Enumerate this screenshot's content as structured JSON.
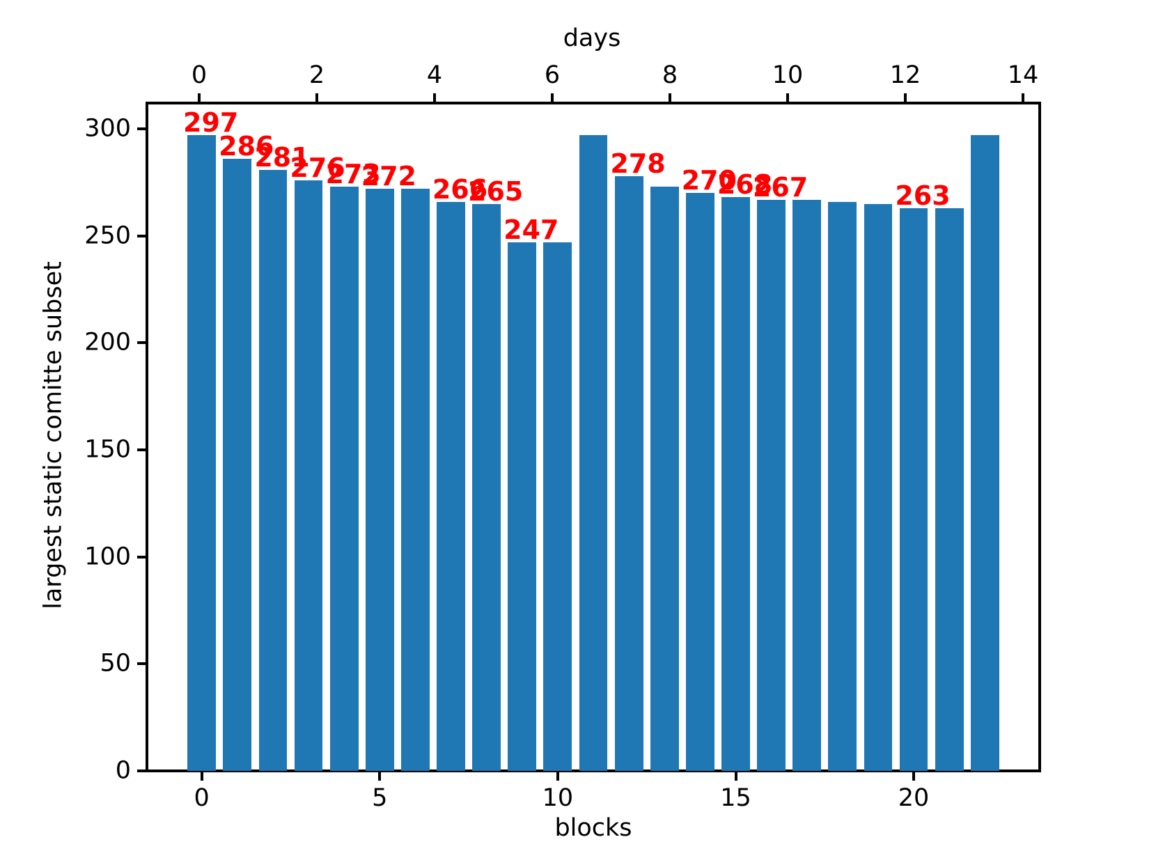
{
  "chart_data": {
    "type": "bar",
    "title": "",
    "top_xlabel": "days",
    "bottom_xlabel": "blocks",
    "ylabel": "largest static comitte subset",
    "categories_blocks": [
      0,
      1,
      2,
      3,
      4,
      5,
      6,
      7,
      8,
      9,
      10,
      11,
      12,
      13,
      14,
      15,
      16,
      17,
      18,
      19,
      20,
      21,
      22
    ],
    "values": [
      297,
      286,
      281,
      276,
      273,
      272,
      272,
      266,
      265,
      247,
      247,
      297,
      278,
      273,
      270,
      268,
      267,
      267,
      266,
      265,
      263,
      263,
      297
    ],
    "bar_value_labels": [
      {
        "block": 0,
        "label": "297"
      },
      {
        "block": 1,
        "label": "286"
      },
      {
        "block": 2,
        "label": "281"
      },
      {
        "block": 3,
        "label": "276"
      },
      {
        "block": 4,
        "label": "273"
      },
      {
        "block": 5,
        "label": "272"
      },
      {
        "block": 7,
        "label": "266"
      },
      {
        "block": 8,
        "label": "265"
      },
      {
        "block": 9,
        "label": "247"
      },
      {
        "block": 12,
        "label": "278"
      },
      {
        "block": 14,
        "label": "270"
      },
      {
        "block": 15,
        "label": "268"
      },
      {
        "block": 16,
        "label": "267"
      },
      {
        "block": 20,
        "label": "263"
      }
    ],
    "y_ticks": [
      "0",
      "50",
      "100",
      "150",
      "200",
      "250",
      "300"
    ],
    "y_tick_values": [
      0,
      50,
      100,
      150,
      200,
      250,
      300
    ],
    "bottom_x_ticks": [
      "0",
      "5",
      "10",
      "15",
      "20"
    ],
    "bottom_x_tick_values": [
      0,
      5,
      10,
      15,
      20
    ],
    "top_x_ticks": [
      "0",
      "2",
      "4",
      "6",
      "8",
      "10",
      "12",
      "14"
    ],
    "top_x_tick_values": [
      0,
      2,
      4,
      6,
      8,
      10,
      12,
      14
    ],
    "ylim": [
      0,
      312
    ],
    "xlim_blocks": [
      -1.54,
      23.54
    ],
    "bar_width_blocks": 0.8,
    "legend": null,
    "grid": false,
    "bar_color": "#1f77b4",
    "value_label_color": "#ff0000",
    "axis_color": "#000000"
  }
}
